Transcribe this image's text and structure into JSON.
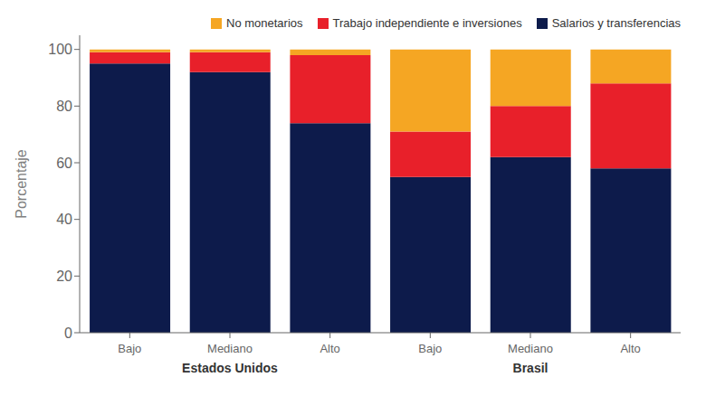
{
  "chart_data": {
    "type": "bar",
    "stacked": true,
    "categories": [
      "Bajo",
      "Mediano",
      "Alto",
      "Bajo",
      "Mediano",
      "Alto"
    ],
    "group_labels": [
      "Estados Unidos",
      "Brasil"
    ],
    "series": [
      {
        "name": "Salarios y transferencias",
        "color": "#0d1b4b",
        "values": [
          95,
          92,
          74,
          55,
          62,
          58
        ]
      },
      {
        "name": "Trabajo independiente e inversiones",
        "color": "#e8202a",
        "values": [
          4,
          7,
          24,
          16,
          18,
          30
        ]
      },
      {
        "name": "No monetarios",
        "color": "#f5a623",
        "values": [
          1,
          1,
          2,
          29,
          20,
          12
        ]
      }
    ],
    "ylabel": "Porcentaje",
    "ylim": [
      0,
      105
    ],
    "yticks": [
      0,
      20,
      40,
      60,
      80,
      100
    ],
    "legend": "upper right",
    "grid": false
  }
}
